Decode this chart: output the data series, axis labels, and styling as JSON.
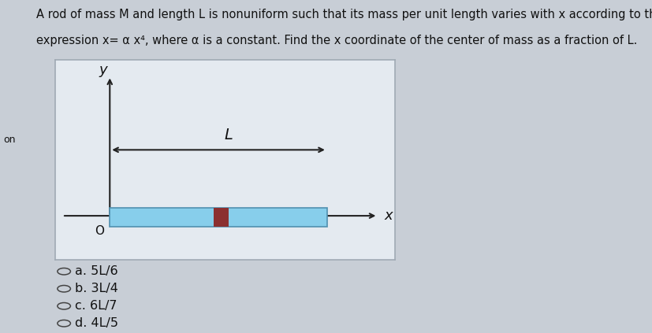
{
  "page_bg": "#c8ced6",
  "diagram_bg": "#e4eaf0",
  "diagram_border": "#a0aab4",
  "rod_color": "#87CEEB",
  "rod_border_color": "#5090b0",
  "marker_color": "#8B3030",
  "axis_color": "#222222",
  "text_color": "#111111",
  "title_line1": "A rod of mass M and length L is nonuniform such that its mass per unit length varies with x according to the",
  "title_line2": "expression x= α x⁴, where α is a constant. Find the x coordinate of the center of mass as a fraction of L.",
  "options": [
    "a. 5L/6",
    "b. 3L/4",
    "c. 6L/7",
    "d. 4L/5"
  ],
  "title_fontsize": 10.5,
  "option_fontsize": 11.5,
  "left_label": "on"
}
